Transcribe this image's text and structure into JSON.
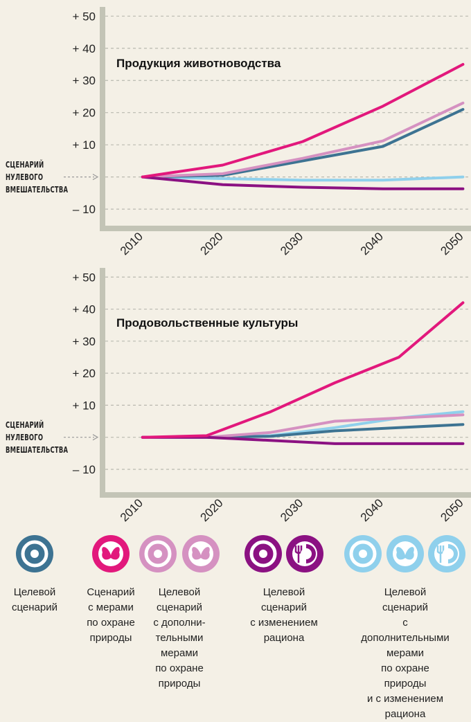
{
  "chart_data": [
    {
      "type": "line",
      "title": "Продукция животноводства",
      "annotation": "СЦЕНАРИЙ\nНУЛЕВОГО\nВМЕШАТЕЛЬСТВА",
      "x": [
        2010,
        2020,
        2030,
        2040,
        2050
      ],
      "xlim": [
        2005,
        2051
      ],
      "xticks": [
        2010,
        2020,
        2030,
        2040,
        2050
      ],
      "ylim": [
        -16,
        52
      ],
      "yticks": [
        {
          "value": 50,
          "label": "+ 50"
        },
        {
          "value": 40,
          "label": "+ 40"
        },
        {
          "value": 30,
          "label": "+ 30"
        },
        {
          "value": 20,
          "label": "+ 20"
        },
        {
          "value": 10,
          "label": "+ 10"
        },
        {
          "value": -10,
          "label": "– 10"
        }
      ],
      "grid": true,
      "series": [
        {
          "name": "Целевой\nсценарий",
          "color": "#3d7392",
          "values": [
            0,
            0.5,
            5,
            9.5,
            21
          ]
        },
        {
          "name": "Сценарий\nс мерами\nпо охране\nприроды",
          "color": "#e2187c",
          "values": [
            0,
            3.7,
            11,
            22,
            35
          ]
        },
        {
          "name": "Целевой\nсценарий\nс дополни-\nтельными\nмерами\nпо охране\nприроды",
          "color": "#d591c1",
          "values": [
            0,
            1,
            5.8,
            11.2,
            23
          ]
        },
        {
          "name": "Целевой\nсценарий\nс изменением\nрациона",
          "color": "#8b1182",
          "values": [
            0,
            -2.4,
            -3.2,
            -3.7,
            -3.7
          ]
        },
        {
          "name": "Целевой сценарий\nс дополнительными\nмерами\nпо охране природы\nи с изменением\nрациона",
          "color": "#8fd0ec",
          "values": [
            0,
            -0.5,
            -1,
            -1,
            0
          ]
        }
      ]
    },
    {
      "type": "line",
      "title": "Продовольственные культуры",
      "annotation": "СЦЕНАРИЙ\nНУЛЕВОГО\nВМЕШАТЕЛЬСТВА",
      "x": [
        2010,
        2018,
        2026,
        2034,
        2042,
        2050
      ],
      "xlim": [
        2005,
        2051
      ],
      "xticks": [
        2010,
        2020,
        2030,
        2040,
        2050
      ],
      "ylim": [
        -18,
        52
      ],
      "yticks": [
        {
          "value": 50,
          "label": "+ 50"
        },
        {
          "value": 40,
          "label": "+ 40"
        },
        {
          "value": 30,
          "label": "+ 30"
        },
        {
          "value": 20,
          "label": "+ 20"
        },
        {
          "value": 10,
          "label": "+ 10"
        },
        {
          "value": -10,
          "label": "– 10"
        }
      ],
      "grid": true,
      "series": [
        {
          "color": "#3d7392",
          "values": [
            0,
            0,
            0.3,
            2,
            3,
            4
          ]
        },
        {
          "color": "#e2187c",
          "values": [
            0,
            0.5,
            8,
            17,
            25,
            42
          ]
        },
        {
          "color": "#d591c1",
          "values": [
            0,
            0,
            1.5,
            5,
            6,
            7
          ]
        },
        {
          "color": "#8b1182",
          "values": [
            0,
            0,
            -1,
            -2,
            -2,
            -2
          ]
        },
        {
          "color": "#8fd0ec",
          "values": [
            0,
            0,
            0.5,
            3,
            6,
            8
          ]
        }
      ]
    }
  ]
}
